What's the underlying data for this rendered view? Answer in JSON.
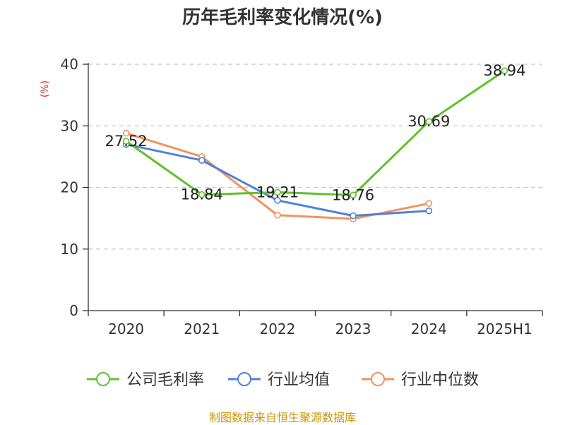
{
  "chart_data": {
    "type": "line",
    "title": "历年毛利率变化情况(%)",
    "ylabel": "(%)",
    "xlabel": "",
    "categories": [
      "2020",
      "2021",
      "2022",
      "2023",
      "2024",
      "2025H1"
    ],
    "ylim": [
      0,
      40
    ],
    "yticks": [
      0,
      10,
      20,
      30,
      40
    ],
    "grid": true,
    "legend_position": "bottom",
    "series": [
      {
        "name": "公司毛利率",
        "color": "#5ec229",
        "values": [
          27.52,
          18.84,
          19.21,
          18.76,
          30.69,
          38.94
        ],
        "show_labels": true
      },
      {
        "name": "行业均值",
        "color": "#4f81d9",
        "values": [
          27.0,
          24.4,
          17.9,
          15.4,
          16.2,
          null
        ],
        "show_labels": false
      },
      {
        "name": "行业中位数",
        "color": "#f4915c",
        "values": [
          28.8,
          25.0,
          15.5,
          14.9,
          17.4,
          null
        ],
        "show_labels": false
      }
    ],
    "source": "制图数据来自恒生聚源数据库"
  }
}
